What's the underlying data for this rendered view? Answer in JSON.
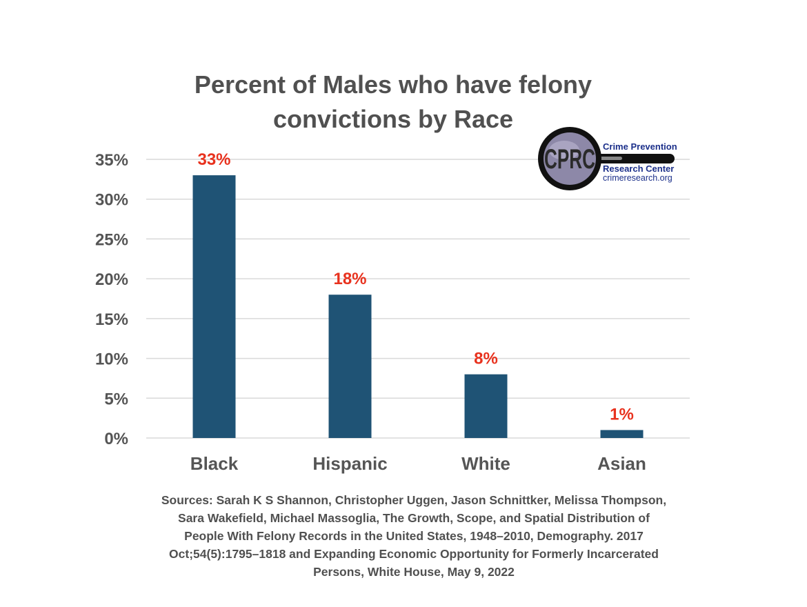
{
  "chart_data": {
    "type": "bar",
    "title": "Percent of Males who have felony convictions by Race",
    "categories": [
      "Black",
      "Hispanic",
      "White",
      "Asian"
    ],
    "values": [
      33,
      18,
      8,
      1
    ],
    "data_labels": [
      "33%",
      "18%",
      "8%",
      "1%"
    ],
    "ylim": [
      0,
      35
    ],
    "yticks": [
      0,
      5,
      10,
      15,
      20,
      25,
      30,
      35
    ],
    "ytick_labels": [
      "0%",
      "5%",
      "10%",
      "15%",
      "20%",
      "25%",
      "30%",
      "35%"
    ],
    "xlabel": "",
    "ylabel": "",
    "grid": true,
    "bar_color": "#1f5375",
    "label_color": "#e8321e",
    "grid_color": "#d9d9d9"
  },
  "logo": {
    "monogram": "CPRC",
    "line1": "Crime Prevention",
    "line2": "Research Center",
    "line3": "crimeresearch.org",
    "text_color": "#1b2f8a"
  },
  "sources": "Sources: Sarah K S Shannon, Christopher Uggen, Jason Schnittker, Melissa Thompson, Sara Wakefield, Michael Massoglia, The Growth, Scope, and Spatial Distribution of People With Felony Records in the United States, 1948–2010, Demography. 2017 Oct;54(5):1795–1818 and Expanding Economic Opportunity for Formerly Incarcerated Persons, White House, May 9, 2022"
}
